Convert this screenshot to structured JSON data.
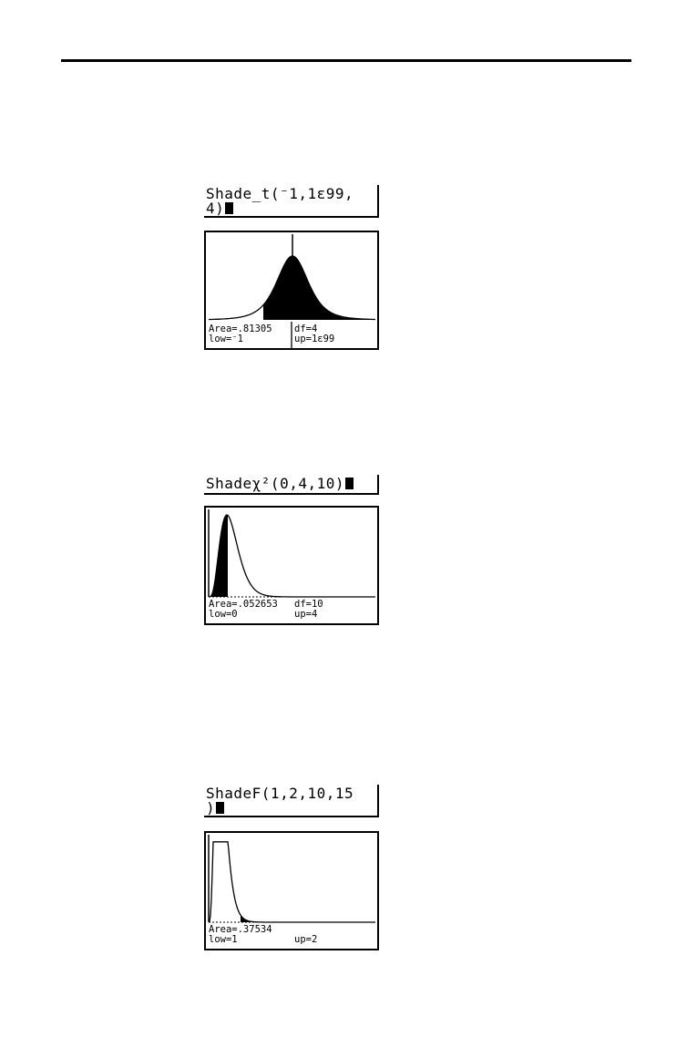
{
  "examples": [
    {
      "home_lines": [
        "Shade_t(⁻1,1ɛ99,",
        "4)"
      ],
      "area": "Area=.81305",
      "df": "df=4",
      "low": "low=⁻1",
      "up": "up=1ɛ99",
      "curve": "t"
    },
    {
      "home_lines": [
        "Shadeχ²(0,4,10)"
      ],
      "area": "Area=.052653",
      "df": "df=10",
      "low": "low=0",
      "up": "up=4",
      "curve": "chi2"
    },
    {
      "home_lines": [
        "ShadeF(1,2,10,15",
        ")"
      ],
      "area": "Area=.37534",
      "df": "",
      "low": "low=1",
      "up": "up=2",
      "curve": "F"
    }
  ]
}
